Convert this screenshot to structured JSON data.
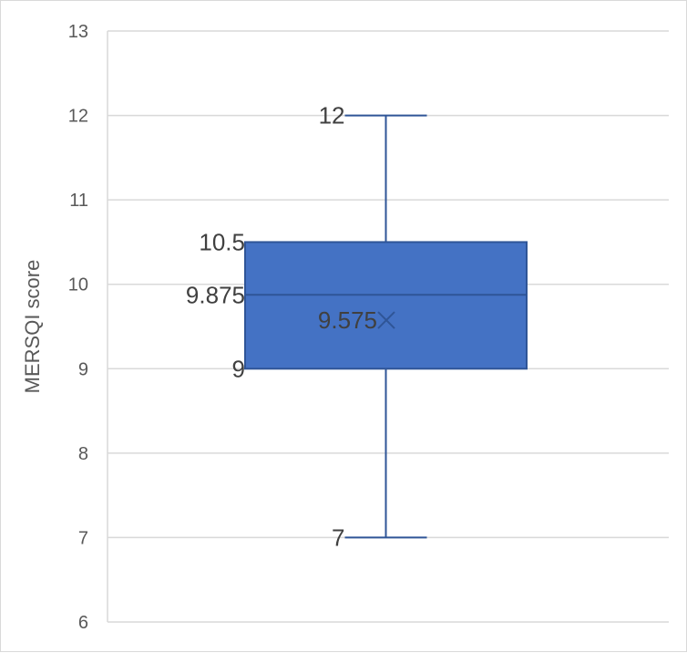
{
  "chart_data": {
    "type": "box",
    "title": "",
    "xlabel": "",
    "ylabel": "MERSQI score",
    "ylim": [
      6,
      13
    ],
    "yticks": [
      6,
      7,
      8,
      9,
      10,
      11,
      12,
      13
    ],
    "ytick_labels": [
      "6",
      "7",
      "8",
      "9",
      "10",
      "11",
      "12",
      "13"
    ],
    "grid": true,
    "legend": "none",
    "box": {
      "min": 7,
      "q1": 9,
      "median": 9.875,
      "q3": 10.5,
      "max": 12,
      "mean": 9.575
    },
    "data_labels": {
      "min": "7",
      "q1": "9",
      "median": "9.875",
      "q3": "10.5",
      "max": "12",
      "mean": "9.575"
    },
    "colors": {
      "box_fill": "#4472c4",
      "box_stroke": "#2f5597",
      "whisker": "#2f5597",
      "grid": "#d9d9d9",
      "text": "#595959",
      "label": "#404040"
    }
  }
}
